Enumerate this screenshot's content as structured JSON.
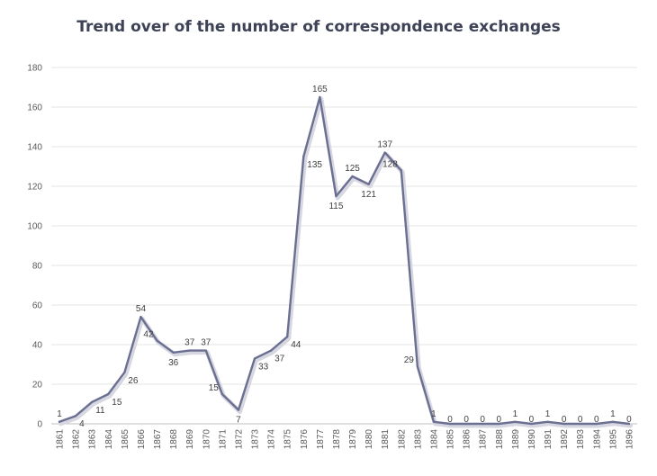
{
  "chart_data": {
    "type": "line",
    "title": "Trend over of the number of correspondence exchanges",
    "xlabel": "",
    "ylabel": "",
    "ylim": [
      0,
      180
    ],
    "yticks": [
      "0",
      "20",
      "40",
      "60",
      "80",
      "100",
      "120",
      "140",
      "160",
      "180"
    ],
    "grid": true,
    "legend": "none",
    "categories": [
      "1861",
      "1862",
      "1863",
      "1864",
      "1865",
      "1866",
      "1867",
      "1868",
      "1869",
      "1870",
      "1871",
      "1872",
      "1873",
      "1874",
      "1875",
      "1876",
      "1877",
      "1878",
      "1879",
      "1880",
      "1881",
      "1882",
      "1883",
      "1884",
      "1885",
      "1886",
      "1887",
      "1888",
      "1889",
      "1890",
      "1891",
      "1892",
      "1893",
      "1894",
      "1895",
      "1896"
    ],
    "series": [
      {
        "values": [
          1,
          4,
          11,
          15,
          26,
          54,
          42,
          36,
          37,
          37,
          15,
          7,
          33,
          37,
          44,
          135,
          165,
          115,
          125,
          121,
          137,
          128,
          29,
          1,
          0,
          0,
          0,
          0,
          1,
          0,
          1,
          0,
          0,
          0,
          1,
          0
        ],
        "labels": [
          "1",
          "4",
          "11",
          "15",
          "26",
          "54",
          "42",
          "36",
          "37",
          "37",
          "15",
          "7",
          "33",
          "37",
          "44",
          "135",
          "165",
          "115",
          "125",
          "121",
          "137",
          "128",
          "29",
          "1",
          "0",
          "0",
          "0",
          "0",
          "1",
          "0",
          "1",
          "0",
          "0",
          "0",
          "1",
          "0"
        ],
        "color": "#6b6f91"
      }
    ]
  }
}
